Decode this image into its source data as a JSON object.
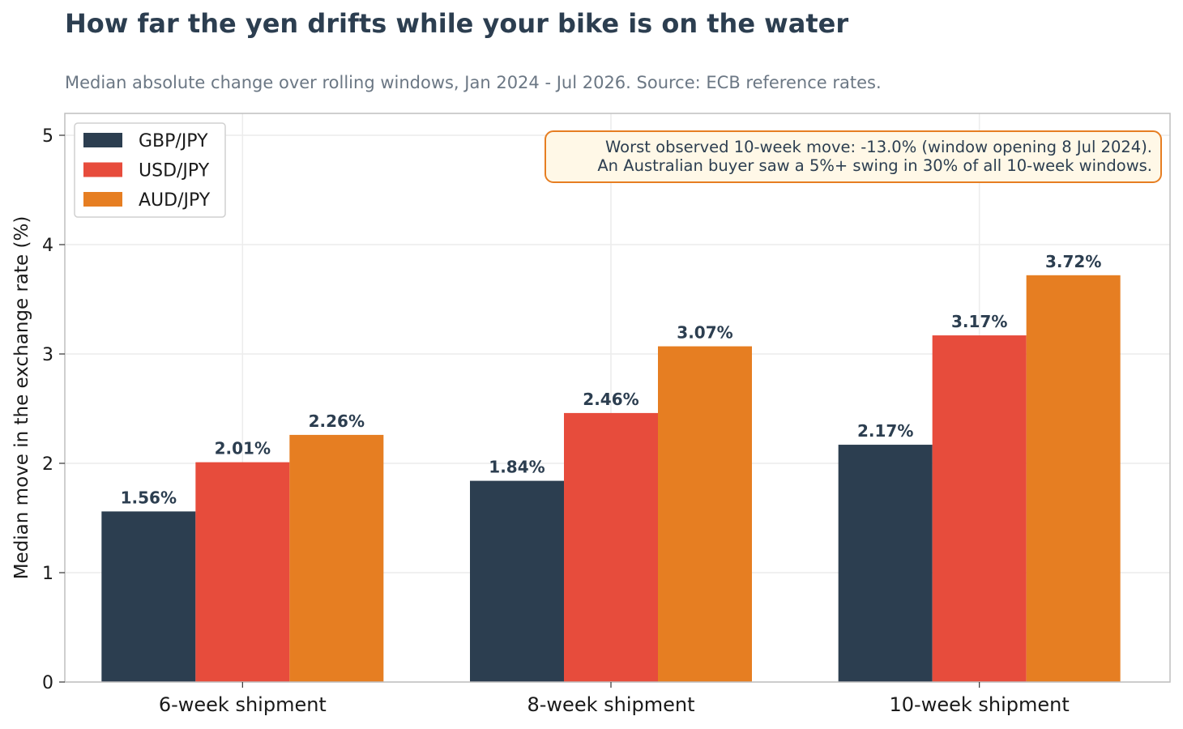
{
  "chart_data": {
    "type": "bar",
    "title": "How far the yen drifts while your bike is on the water",
    "subtitle": "Median absolute change over rolling windows, Jan 2024 - Jul 2026. Source: ECB reference rates.",
    "xlabel": "",
    "ylabel": "Median move in the exchange rate (%)",
    "ylim": [
      0,
      5.2
    ],
    "yticks": [
      0,
      1,
      2,
      3,
      4,
      5
    ],
    "categories": [
      "6-week shipment",
      "8-week shipment",
      "10-week shipment"
    ],
    "series": [
      {
        "name": "GBP/JPY",
        "color": "#2c3e50",
        "values": [
          1.56,
          1.84,
          2.17
        ],
        "labels": [
          "1.56%",
          "1.84%",
          "2.17%"
        ]
      },
      {
        "name": "USD/JPY",
        "color": "#e74c3c",
        "values": [
          2.01,
          2.46,
          3.17
        ],
        "labels": [
          "2.01%",
          "2.46%",
          "3.17%"
        ]
      },
      {
        "name": "AUD/JPY",
        "color": "#e67e22",
        "values": [
          2.26,
          3.07,
          3.72
        ],
        "labels": [
          "2.26%",
          "3.07%",
          "3.72%"
        ]
      }
    ],
    "grid": true,
    "legend_position": "top-left",
    "annotation": {
      "lines": [
        "Worst observed 10-week move: -13.0% (window opening 8 Jul 2024).",
        "An Australian buyer saw a 5%+ swing in 30% of all 10-week windows."
      ],
      "position": "top-right",
      "border_color": "#e67e22",
      "fill_color": "#fff8e7"
    }
  }
}
